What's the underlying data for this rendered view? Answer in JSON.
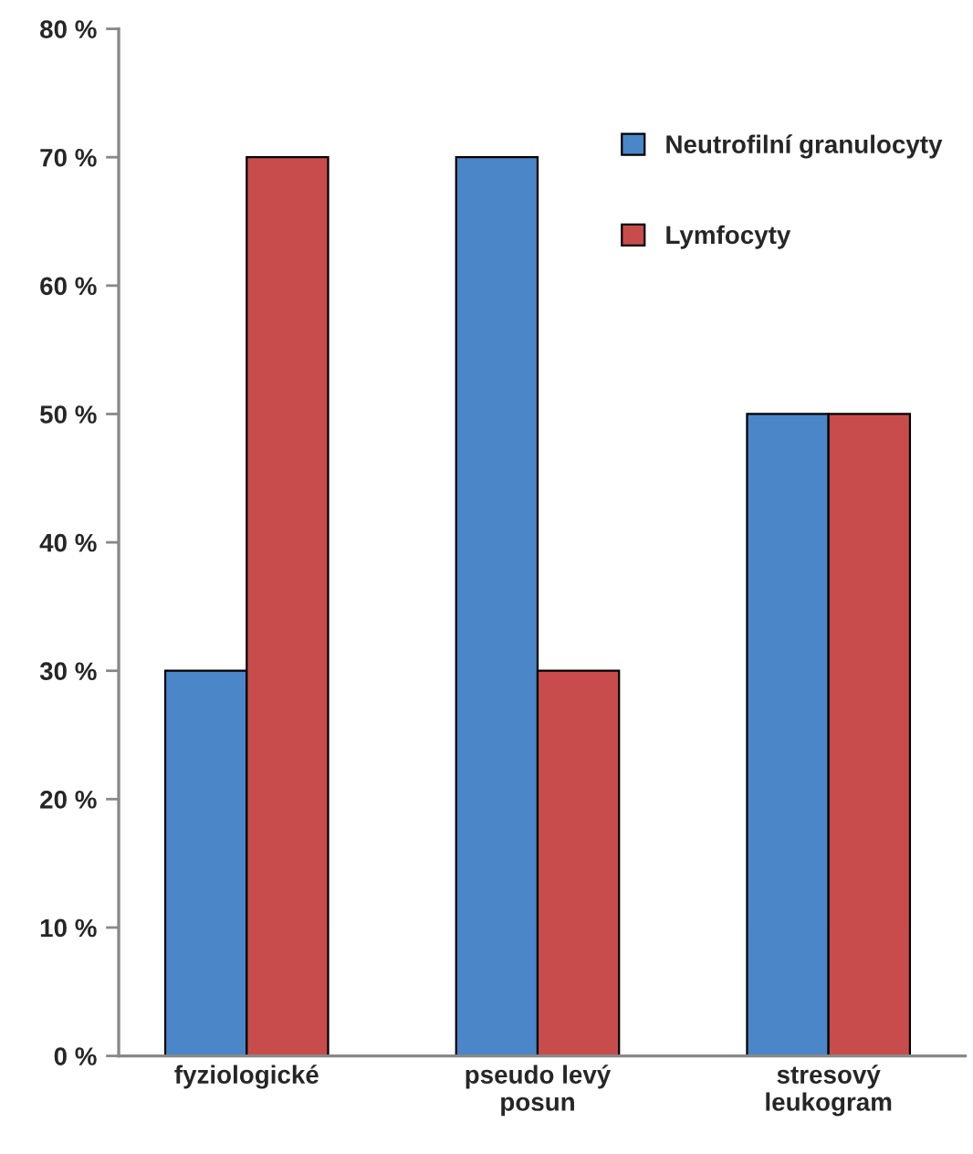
{
  "chart_data": {
    "type": "bar",
    "categories": [
      "fyziologické",
      "pseudo levý\nposun",
      "stresový\nleukogram"
    ],
    "series": [
      {
        "name": "Neutrofilní granulocyty",
        "color": "#4a86c8",
        "values": [
          30,
          70,
          50
        ]
      },
      {
        "name": "Lymfocyty",
        "color": "#c94c4c",
        "values": [
          70,
          30,
          50
        ]
      }
    ],
    "ylim": [
      0,
      80
    ],
    "yticks": [
      {
        "value": 0,
        "label": "0 %"
      },
      {
        "value": 10,
        "label": "10 %"
      },
      {
        "value": 20,
        "label": "20 %"
      },
      {
        "value": 30,
        "label": "30 %"
      },
      {
        "value": 40,
        "label": "40 %"
      },
      {
        "value": 50,
        "label": "50 %"
      },
      {
        "value": 60,
        "label": "60 %"
      },
      {
        "value": 70,
        "label": "70 %"
      },
      {
        "value": 80,
        "label": "80 %"
      }
    ],
    "grid": false,
    "legend": "top right"
  }
}
